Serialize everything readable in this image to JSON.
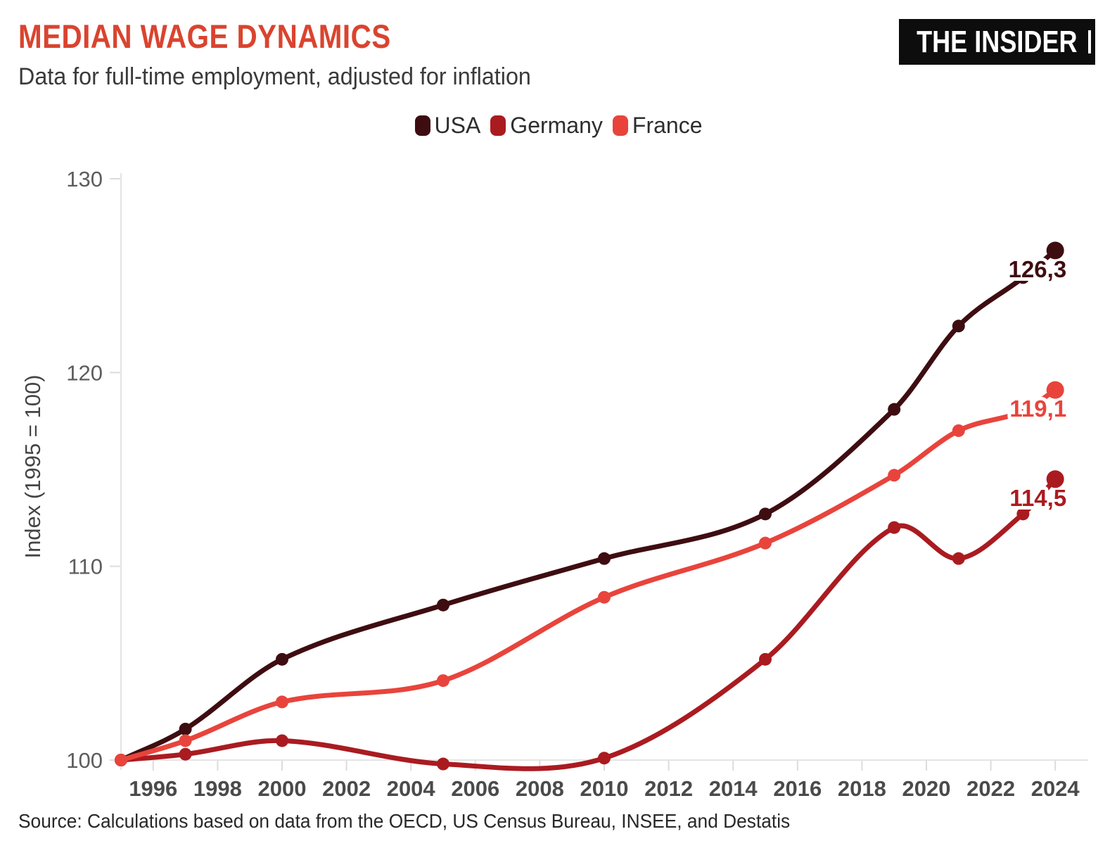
{
  "header": {
    "title": "MEDIAN WAGE DYNAMICS",
    "subtitle": "Data for full-time employment, adjusted for inflation",
    "logo": "THE INSIDER"
  },
  "source": "Source: Calculations based on data from the OECD, US Census Bureau, INSEE, and Destatis",
  "colors": {
    "title_accent": "#d9442f",
    "usa": "#3e0d11",
    "germany": "#aa1b20",
    "france": "#e8443c",
    "axis_line": "#e4e4e4",
    "tick_mark": "#dcdcdc",
    "y_tick_label": "#5d5d5d",
    "x_tick_label": "#4a4a4a",
    "y_axis_title": "#454545",
    "logo_bg": "#0d0d0d",
    "logo_text": "#ffffff"
  },
  "chart_data": {
    "type": "line",
    "title": "MEDIAN WAGE DYNAMICS",
    "subtitle": "Data for full-time employment, adjusted for inflation",
    "xlabel": "",
    "ylabel": "Index (1995 = 100)",
    "x": [
      1995,
      1997,
      2000,
      2005,
      2010,
      2015,
      2019,
      2021,
      2023,
      2024
    ],
    "series": [
      {
        "name": "USA",
        "color": "#3e0d11",
        "values": [
          100,
          101.6,
          105.2,
          108.0,
          110.4,
          112.7,
          118.1,
          122.4,
          124.9,
          126.3
        ],
        "end_label": "126,3"
      },
      {
        "name": "Germany",
        "color": "#aa1b20",
        "values": [
          100,
          100.3,
          101.0,
          99.8,
          100.1,
          105.2,
          112.0,
          110.4,
          112.7,
          114.5
        ],
        "end_label": "114,5"
      },
      {
        "name": "France",
        "color": "#e8443c",
        "values": [
          100,
          101.0,
          103.0,
          104.1,
          108.4,
          111.2,
          114.7,
          117.0,
          118.0,
          119.1
        ],
        "end_label": "119,1"
      }
    ],
    "ylim": [
      100,
      130
    ],
    "yticks": [
      100,
      110,
      120,
      130
    ],
    "xticks": [
      1996,
      1998,
      2000,
      2002,
      2004,
      2006,
      2008,
      2010,
      2012,
      2014,
      2016,
      2018,
      2020,
      2022,
      2024
    ],
    "legend_position": "top-center",
    "grid": false
  }
}
